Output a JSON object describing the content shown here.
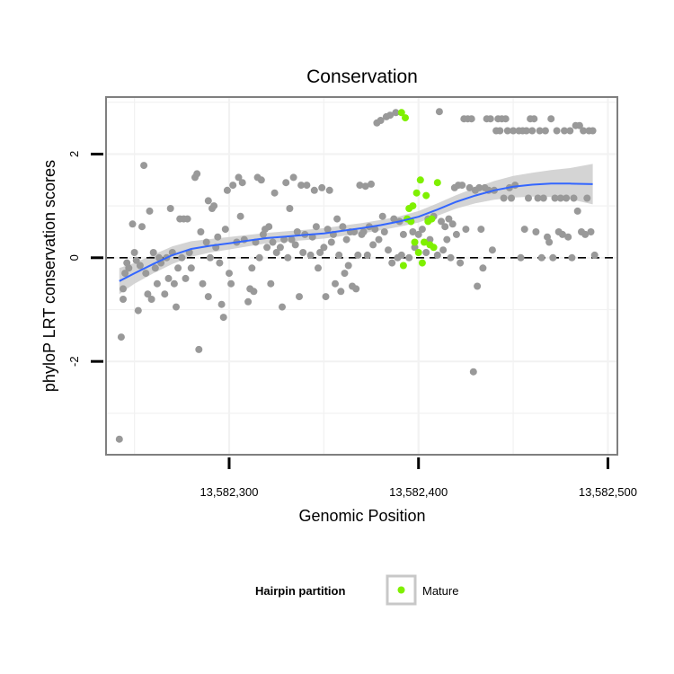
{
  "chart_data": {
    "type": "scatter",
    "title": "Conservation",
    "xlabel": "Genomic Position",
    "ylabel": "phyloP LRT conservation scores",
    "xlim": [
      13582235,
      13582505
    ],
    "ylim": [
      -3.8,
      3.1
    ],
    "x_ticks": [
      13582300,
      13582400,
      13582500
    ],
    "x_tick_labels": [
      "13,582,300",
      "13,582,400",
      "13,582,500"
    ],
    "y_ticks": [
      -2,
      0,
      2
    ],
    "y_tick_labels": [
      "-2",
      "0",
      "2"
    ],
    "grid": true,
    "reference_line": {
      "y": 0,
      "style": "dashed"
    },
    "colors": {
      "points": "#999999",
      "mature": "#7ff000",
      "smooth_line": "#3366ff",
      "confidence_band": "#cccccc",
      "panel_border": "#7f7f7f",
      "grid": "#f2f2f2"
    },
    "legend": {
      "title": "Hairpin partition",
      "entries": [
        "Mature"
      ],
      "placement": "bottom"
    },
    "series": [
      {
        "points": [
          [
            13582242,
            -3.5
          ],
          [
            13582243,
            -1.53
          ],
          [
            13582244,
            -0.8
          ],
          [
            13582244,
            -0.6
          ],
          [
            13582245,
            -0.3
          ],
          [
            13582246,
            -0.1
          ],
          [
            13582247,
            -0.2
          ],
          [
            13582249,
            0.65
          ],
          [
            13582250,
            0.1
          ],
          [
            13582251,
            -0.05
          ],
          [
            13582252,
            -1.02
          ],
          [
            13582253,
            -0.15
          ],
          [
            13582254,
            0.6
          ],
          [
            13582255,
            1.78
          ],
          [
            13582256,
            -0.3
          ],
          [
            13582257,
            -0.7
          ],
          [
            13582258,
            0.9
          ],
          [
            13582259,
            -0.8
          ],
          [
            13582260,
            0.1
          ],
          [
            13582261,
            -0.2
          ],
          [
            13582262,
            -0.5
          ],
          [
            13582263,
            0.0
          ],
          [
            13582264,
            -0.1
          ],
          [
            13582266,
            -0.7
          ],
          [
            13582267,
            0.0
          ],
          [
            13582268,
            -0.4
          ],
          [
            13582269,
            0.95
          ],
          [
            13582270,
            0.1
          ],
          [
            13582271,
            -0.5
          ],
          [
            13582272,
            -0.95
          ],
          [
            13582273,
            -0.2
          ],
          [
            13582274,
            0.75
          ],
          [
            13582275,
            0.0
          ],
          [
            13582276,
            0.75
          ],
          [
            13582277,
            -0.4
          ],
          [
            13582278,
            0.75
          ],
          [
            13582279,
            0.1
          ],
          [
            13582280,
            -0.2
          ],
          [
            13582282,
            1.55
          ],
          [
            13582283,
            1.62
          ],
          [
            13582284,
            -1.77
          ],
          [
            13582285,
            0.5
          ],
          [
            13582286,
            -0.5
          ],
          [
            13582288,
            0.3
          ],
          [
            13582289,
            -0.75
          ],
          [
            13582289,
            1.1
          ],
          [
            13582290,
            0.0
          ],
          [
            13582291,
            0.95
          ],
          [
            13582292,
            1.0
          ],
          [
            13582293,
            0.2
          ],
          [
            13582294,
            0.4
          ],
          [
            13582295,
            -0.1
          ],
          [
            13582296,
            -0.9
          ],
          [
            13582297,
            -1.15
          ],
          [
            13582298,
            0.55
          ],
          [
            13582299,
            1.3
          ],
          [
            13582300,
            -0.3
          ],
          [
            13582301,
            -0.5
          ],
          [
            13582302,
            1.4
          ],
          [
            13582304,
            0.3
          ],
          [
            13582305,
            1.55
          ],
          [
            13582306,
            0.8
          ],
          [
            13582307,
            1.45
          ],
          [
            13582308,
            0.35
          ],
          [
            13582310,
            -0.85
          ],
          [
            13582311,
            -0.6
          ],
          [
            13582312,
            -0.2
          ],
          [
            13582313,
            -0.65
          ],
          [
            13582314,
            0.3
          ],
          [
            13582315,
            1.55
          ],
          [
            13582316,
            0.0
          ],
          [
            13582317,
            1.5
          ],
          [
            13582318,
            0.45
          ],
          [
            13582319,
            0.55
          ],
          [
            13582320,
            0.2
          ],
          [
            13582321,
            0.6
          ],
          [
            13582322,
            -0.5
          ],
          [
            13582323,
            0.3
          ],
          [
            13582324,
            1.25
          ],
          [
            13582325,
            0.1
          ],
          [
            13582327,
            0.2
          ],
          [
            13582328,
            -0.95
          ],
          [
            13582329,
            0.35
          ],
          [
            13582330,
            1.45
          ],
          [
            13582331,
            0.0
          ],
          [
            13582332,
            0.95
          ],
          [
            13582333,
            0.35
          ],
          [
            13582334,
            1.55
          ],
          [
            13582335,
            0.25
          ],
          [
            13582336,
            0.5
          ],
          [
            13582337,
            -0.75
          ],
          [
            13582338,
            1.4
          ],
          [
            13582339,
            0.1
          ],
          [
            13582340,
            0.45
          ],
          [
            13582341,
            1.4
          ],
          [
            13582343,
            0.05
          ],
          [
            13582344,
            0.4
          ],
          [
            13582345,
            1.3
          ],
          [
            13582346,
            0.6
          ],
          [
            13582347,
            -0.2
          ],
          [
            13582348,
            0.1
          ],
          [
            13582349,
            1.35
          ],
          [
            13582350,
            0.2
          ],
          [
            13582351,
            -0.75
          ],
          [
            13582352,
            0.55
          ],
          [
            13582353,
            1.3
          ],
          [
            13582354,
            0.3
          ],
          [
            13582355,
            0.45
          ],
          [
            13582356,
            -0.5
          ],
          [
            13582357,
            0.75
          ],
          [
            13582358,
            0.05
          ],
          [
            13582359,
            -0.65
          ],
          [
            13582360,
            0.6
          ],
          [
            13582361,
            -0.3
          ],
          [
            13582362,
            0.35
          ],
          [
            13582363,
            -0.15
          ],
          [
            13582364,
            0.5
          ],
          [
            13582365,
            -0.55
          ],
          [
            13582366,
            0.5
          ],
          [
            13582367,
            -0.6
          ],
          [
            13582368,
            0.05
          ],
          [
            13582369,
            1.4
          ],
          [
            13582370,
            0.45
          ],
          [
            13582371,
            0.5
          ],
          [
            13582372,
            1.38
          ],
          [
            13582373,
            0.05
          ],
          [
            13582374,
            0.6
          ],
          [
            13582375,
            1.42
          ],
          [
            13582376,
            0.25
          ],
          [
            13582377,
            0.55
          ],
          [
            13582378,
            2.6
          ],
          [
            13582379,
            0.35
          ],
          [
            13582380,
            2.65
          ],
          [
            13582381,
            0.8
          ],
          [
            13582382,
            0.5
          ],
          [
            13582383,
            2.72
          ],
          [
            13582384,
            0.15
          ],
          [
            13582385,
            2.75
          ],
          [
            13582386,
            -0.1
          ],
          [
            13582387,
            0.75
          ],
          [
            13582388,
            2.8
          ],
          [
            13582389,
            0.0
          ],
          [
            13582390,
            0.7
          ],
          [
            13582391,
            0.05
          ],
          [
            13582392,
            0.45
          ],
          [
            13582395,
            0.0
          ],
          [
            13582396,
            0.7
          ],
          [
            13582397,
            0.5
          ],
          [
            13582398,
            0.2
          ],
          [
            13582400,
            0.45
          ],
          [
            13582402,
            0.55
          ],
          [
            13582404,
            0.1
          ],
          [
            13582405,
            0.75
          ],
          [
            13582406,
            0.35
          ],
          [
            13582408,
            0.8
          ],
          [
            13582410,
            0.05
          ],
          [
            13582411,
            2.82
          ],
          [
            13582412,
            0.7
          ],
          [
            13582413,
            0.15
          ],
          [
            13582414,
            0.6
          ],
          [
            13582415,
            0.35
          ],
          [
            13582416,
            0.75
          ],
          [
            13582417,
            0.0
          ],
          [
            13582418,
            0.65
          ],
          [
            13582419,
            1.35
          ],
          [
            13582420,
            0.45
          ],
          [
            13582421,
            1.4
          ],
          [
            13582422,
            -0.1
          ],
          [
            13582423,
            1.4
          ],
          [
            13582424,
            2.68
          ],
          [
            13582425,
            0.55
          ],
          [
            13582426,
            2.68
          ],
          [
            13582427,
            1.35
          ],
          [
            13582428,
            2.68
          ],
          [
            13582429,
            -2.2
          ],
          [
            13582430,
            1.3
          ],
          [
            13582431,
            -0.55
          ],
          [
            13582432,
            1.35
          ],
          [
            13582433,
            0.55
          ],
          [
            13582434,
            -0.2
          ],
          [
            13582435,
            1.35
          ],
          [
            13582436,
            2.68
          ],
          [
            13582437,
            1.3
          ],
          [
            13582438,
            2.68
          ],
          [
            13582439,
            0.15
          ],
          [
            13582440,
            1.3
          ],
          [
            13582441,
            2.45
          ],
          [
            13582442,
            2.68
          ],
          [
            13582443,
            2.45
          ],
          [
            13582444,
            2.68
          ],
          [
            13582445,
            1.15
          ],
          [
            13582446,
            2.68
          ],
          [
            13582447,
            2.45
          ],
          [
            13582448,
            1.35
          ],
          [
            13582449,
            1.15
          ],
          [
            13582450,
            2.45
          ],
          [
            13582451,
            1.4
          ],
          [
            13582453,
            2.45
          ],
          [
            13582454,
            0.0
          ],
          [
            13582455,
            2.45
          ],
          [
            13582456,
            0.55
          ],
          [
            13582457,
            2.45
          ],
          [
            13582458,
            1.15
          ],
          [
            13582459,
            2.68
          ],
          [
            13582460,
            2.45
          ],
          [
            13582461,
            2.68
          ],
          [
            13582462,
            0.5
          ],
          [
            13582463,
            1.15
          ],
          [
            13582464,
            2.45
          ],
          [
            13582465,
            0.0
          ],
          [
            13582466,
            1.15
          ],
          [
            13582467,
            2.45
          ],
          [
            13582468,
            0.4
          ],
          [
            13582469,
            0.3
          ],
          [
            13582470,
            2.68
          ],
          [
            13582471,
            0.0
          ],
          [
            13582472,
            1.15
          ],
          [
            13582473,
            2.45
          ],
          [
            13582474,
            0.5
          ],
          [
            13582475,
            1.15
          ],
          [
            13582476,
            0.45
          ],
          [
            13582477,
            2.45
          ],
          [
            13582478,
            1.15
          ],
          [
            13582479,
            0.4
          ],
          [
            13582480,
            2.45
          ],
          [
            13582481,
            0.0
          ],
          [
            13582482,
            1.15
          ],
          [
            13582483,
            2.55
          ],
          [
            13582484,
            0.9
          ],
          [
            13582485,
            2.55
          ],
          [
            13582486,
            0.5
          ],
          [
            13582487,
            2.45
          ],
          [
            13582488,
            0.45
          ],
          [
            13582489,
            1.15
          ],
          [
            13582490,
            2.45
          ],
          [
            13582491,
            0.5
          ],
          [
            13582492,
            2.45
          ],
          [
            13582493,
            0.05
          ]
        ]
      },
      {
        "name": "Mature",
        "points": [
          [
            13582391,
            2.8
          ],
          [
            13582392,
            -0.15
          ],
          [
            13582393,
            2.7
          ],
          [
            13582394,
            0.75
          ],
          [
            13582395,
            0.95
          ],
          [
            13582396,
            0.7
          ],
          [
            13582397,
            1.0
          ],
          [
            13582398,
            0.3
          ],
          [
            13582399,
            1.25
          ],
          [
            13582400,
            0.1
          ],
          [
            13582401,
            1.5
          ],
          [
            13582402,
            -0.1
          ],
          [
            13582403,
            0.3
          ],
          [
            13582404,
            1.2
          ],
          [
            13582405,
            0.7
          ],
          [
            13582406,
            0.25
          ],
          [
            13582407,
            0.75
          ],
          [
            13582408,
            0.2
          ],
          [
            13582410,
            1.45
          ]
        ]
      }
    ],
    "smooth": {
      "x": [
        13582242,
        13582250,
        13582260,
        13582270,
        13582280,
        13582290,
        13582300,
        13582310,
        13582320,
        13582330,
        13582340,
        13582350,
        13582360,
        13582370,
        13582380,
        13582390,
        13582400,
        13582410,
        13582420,
        13582430,
        13582440,
        13582450,
        13582460,
        13582470,
        13582480,
        13582492
      ],
      "y": [
        -0.45,
        -0.3,
        -0.12,
        0.05,
        0.17,
        0.23,
        0.28,
        0.33,
        0.38,
        0.41,
        0.44,
        0.47,
        0.52,
        0.57,
        0.63,
        0.7,
        0.79,
        0.93,
        1.08,
        1.2,
        1.3,
        1.37,
        1.41,
        1.43,
        1.43,
        1.42
      ],
      "lo": [
        -0.7,
        -0.5,
        -0.3,
        -0.12,
        0.02,
        0.1,
        0.16,
        0.22,
        0.28,
        0.31,
        0.34,
        0.37,
        0.42,
        0.47,
        0.53,
        0.6,
        0.68,
        0.81,
        0.95,
        1.05,
        1.12,
        1.16,
        1.18,
        1.17,
        1.13,
        1.03
      ],
      "hi": [
        -0.2,
        -0.1,
        0.06,
        0.22,
        0.32,
        0.36,
        0.4,
        0.44,
        0.48,
        0.51,
        0.54,
        0.57,
        0.62,
        0.67,
        0.73,
        0.8,
        0.9,
        1.05,
        1.21,
        1.35,
        1.48,
        1.58,
        1.64,
        1.69,
        1.73,
        1.81
      ]
    }
  }
}
